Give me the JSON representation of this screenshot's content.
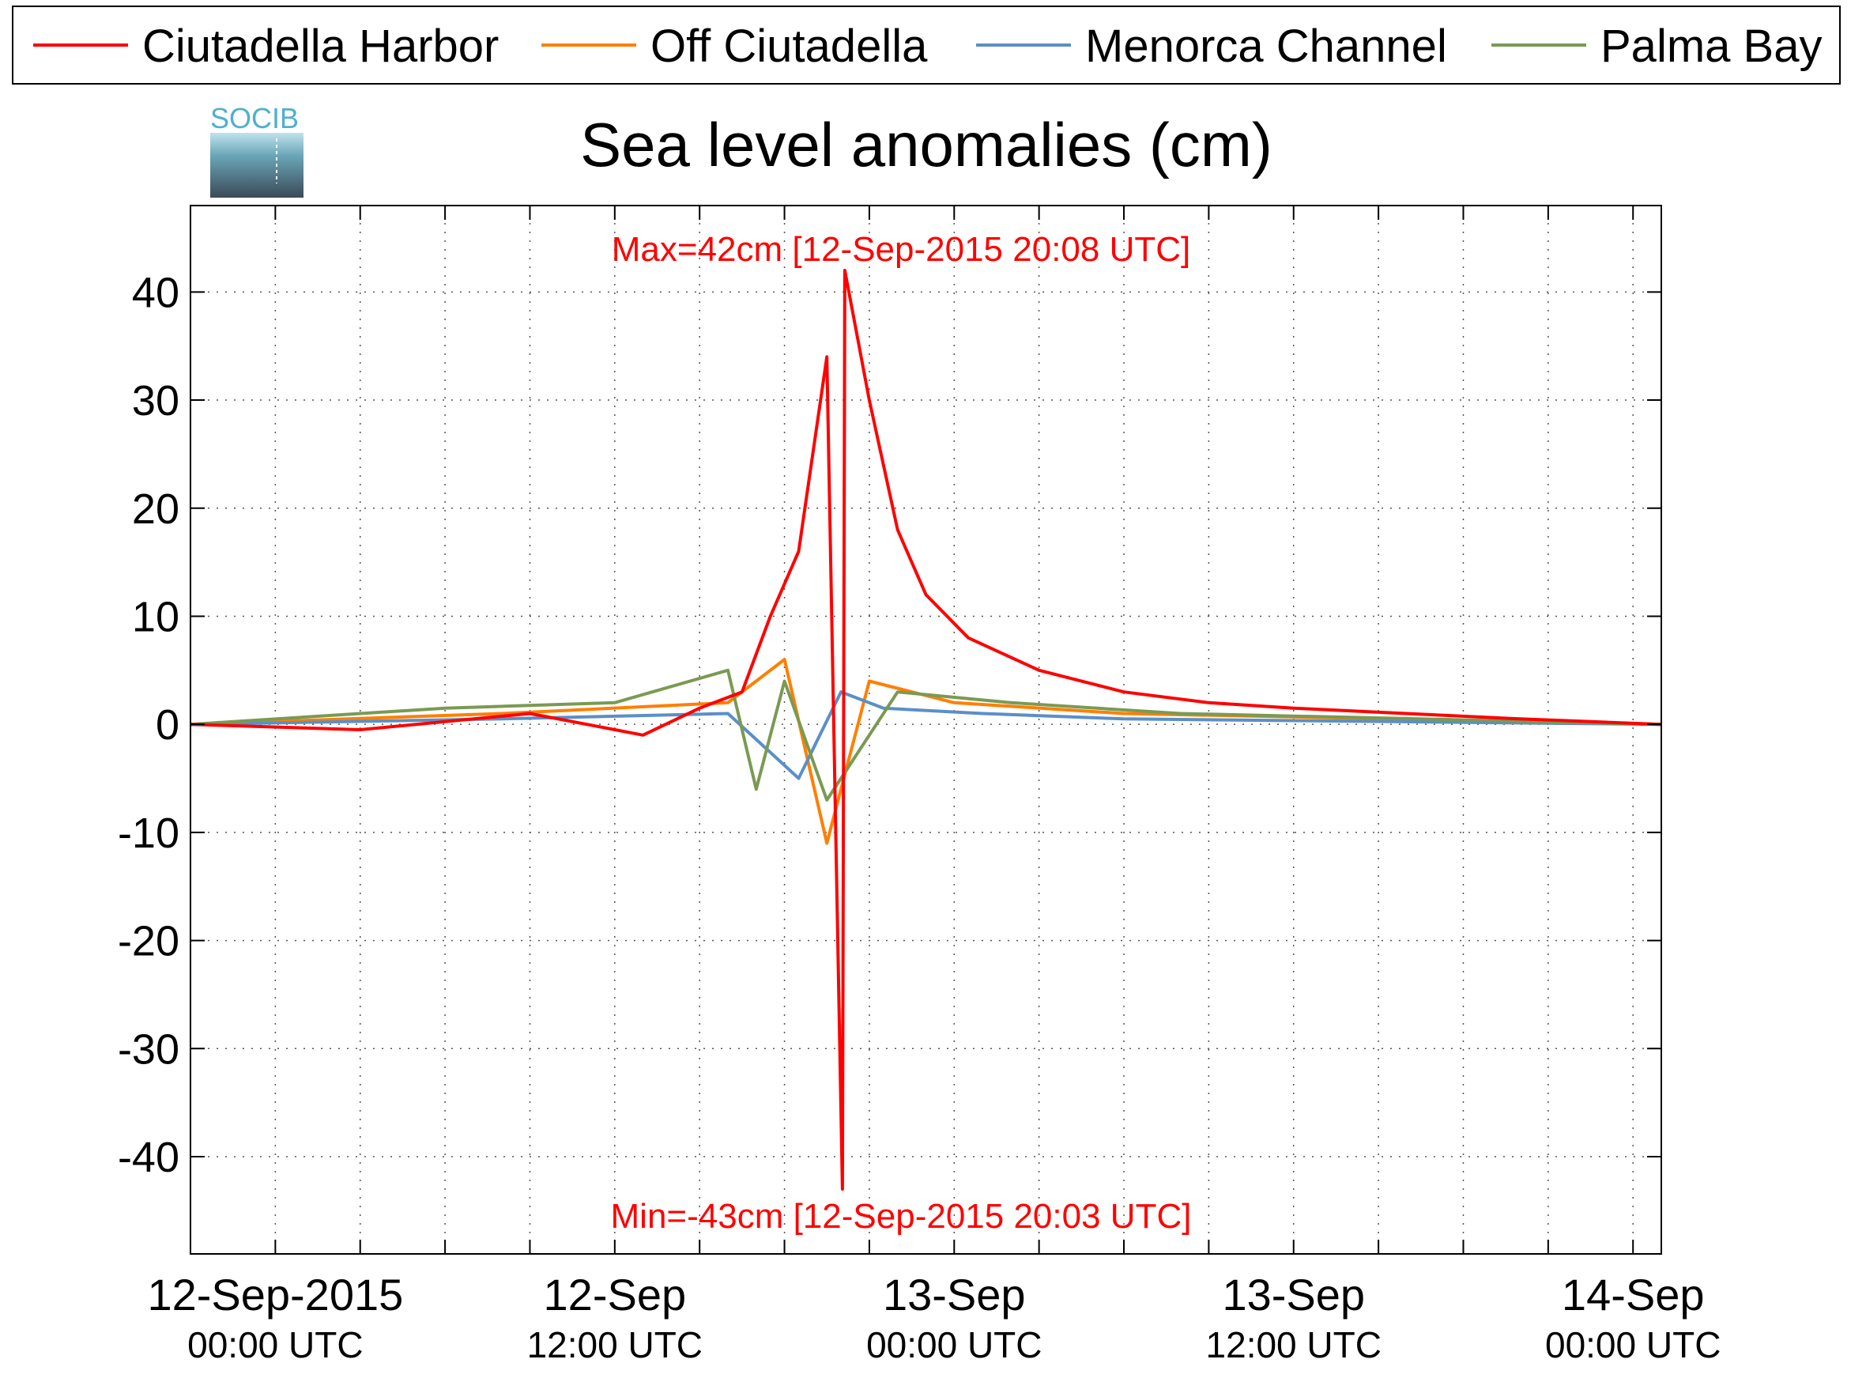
{
  "chart_data": {
    "type": "line",
    "title": "Sea level anomalies (cm)",
    "xlabel": "",
    "ylabel": "",
    "xlim": [
      "2015-09-11T21:00:00Z",
      "2015-09-14T01:00:00Z"
    ],
    "ylim": [
      -49,
      48
    ],
    "yticks": [
      -40,
      -30,
      -20,
      -10,
      0,
      10,
      20,
      30,
      40
    ],
    "xticks": [
      {
        "date": "12-Sep-2015",
        "time": "00:00 UTC",
        "value": "2015-09-12T00:00:00Z"
      },
      {
        "date": "12-Sep",
        "time": "12:00 UTC",
        "value": "2015-09-12T12:00:00Z"
      },
      {
        "date": "13-Sep",
        "time": "00:00 UTC",
        "value": "2015-09-13T00:00:00Z"
      },
      {
        "date": "13-Sep",
        "time": "12:00 UTC",
        "value": "2015-09-13T12:00:00Z"
      },
      {
        "date": "14-Sep",
        "time": "00:00 UTC",
        "value": "2015-09-14T00:00:00Z"
      }
    ],
    "grid": true,
    "legend_position": "top",
    "series": [
      {
        "name": "Ciutadella Harbor",
        "color": "#ff0000",
        "x": [
          "2015-09-11T21:00:00Z",
          "2015-09-12T03:00:00Z",
          "2015-09-12T09:00:00Z",
          "2015-09-12T13:00:00Z",
          "2015-09-12T15:00:00Z",
          "2015-09-12T16:30:00Z",
          "2015-09-12T17:30:00Z",
          "2015-09-12T18:30:00Z",
          "2015-09-12T19:30:00Z",
          "2015-09-12T20:03:00Z",
          "2015-09-12T20:08:00Z",
          "2015-09-12T21:00:00Z",
          "2015-09-12T22:00:00Z",
          "2015-09-12T23:00:00Z",
          "2015-09-13T00:30:00Z",
          "2015-09-13T03:00:00Z",
          "2015-09-13T06:00:00Z",
          "2015-09-13T09:00:00Z",
          "2015-09-13T12:00:00Z",
          "2015-09-13T16:00:00Z",
          "2015-09-13T20:00:00Z",
          "2015-09-14T01:00:00Z"
        ],
        "y": [
          0,
          -0.5,
          1,
          -1,
          1.5,
          3,
          10,
          16,
          34,
          -43,
          42,
          30,
          18,
          12,
          8,
          5,
          3,
          2,
          1.5,
          1,
          0.5,
          0
        ]
      },
      {
        "name": "Off Ciutadella",
        "color": "#ff7f00",
        "x": [
          "2015-09-11T21:00:00Z",
          "2015-09-12T08:00:00Z",
          "2015-09-12T16:00:00Z",
          "2015-09-12T18:00:00Z",
          "2015-09-12T19:30:00Z",
          "2015-09-12T21:00:00Z",
          "2015-09-13T00:00:00Z",
          "2015-09-13T06:00:00Z",
          "2015-09-14T01:00:00Z"
        ],
        "y": [
          0,
          1,
          2,
          6,
          -11,
          4,
          2,
          1,
          0
        ]
      },
      {
        "name": "Menorca Channel",
        "color": "#5b8fc7",
        "x": [
          "2015-09-11T21:00:00Z",
          "2015-09-12T08:00:00Z",
          "2015-09-12T16:00:00Z",
          "2015-09-12T18:30:00Z",
          "2015-09-12T20:00:00Z",
          "2015-09-12T21:30:00Z",
          "2015-09-13T01:00:00Z",
          "2015-09-13T06:00:00Z",
          "2015-09-14T01:00:00Z"
        ],
        "y": [
          0,
          0.5,
          1,
          -5,
          3,
          1.5,
          1,
          0.5,
          0
        ]
      },
      {
        "name": "Palma Bay",
        "color": "#7a9a52",
        "x": [
          "2015-09-11T21:00:00Z",
          "2015-09-12T06:00:00Z",
          "2015-09-12T12:00:00Z",
          "2015-09-12T16:00:00Z",
          "2015-09-12T17:00:00Z",
          "2015-09-12T18:00:00Z",
          "2015-09-12T19:30:00Z",
          "2015-09-12T22:00:00Z",
          "2015-09-13T02:00:00Z",
          "2015-09-13T08:00:00Z",
          "2015-09-14T01:00:00Z"
        ],
        "y": [
          0,
          1.5,
          2,
          5,
          -6,
          4,
          -7,
          3,
          2,
          1,
          0
        ]
      }
    ],
    "annotations": [
      {
        "text": "Max=42cm [12-Sep-2015 20:08 UTC]",
        "color": "#ff0000"
      },
      {
        "text": "Min=-43cm [12-Sep-2015 20:03 UTC]",
        "color": "#ff0000"
      }
    ]
  },
  "logo": {
    "text": "SOCIB"
  }
}
